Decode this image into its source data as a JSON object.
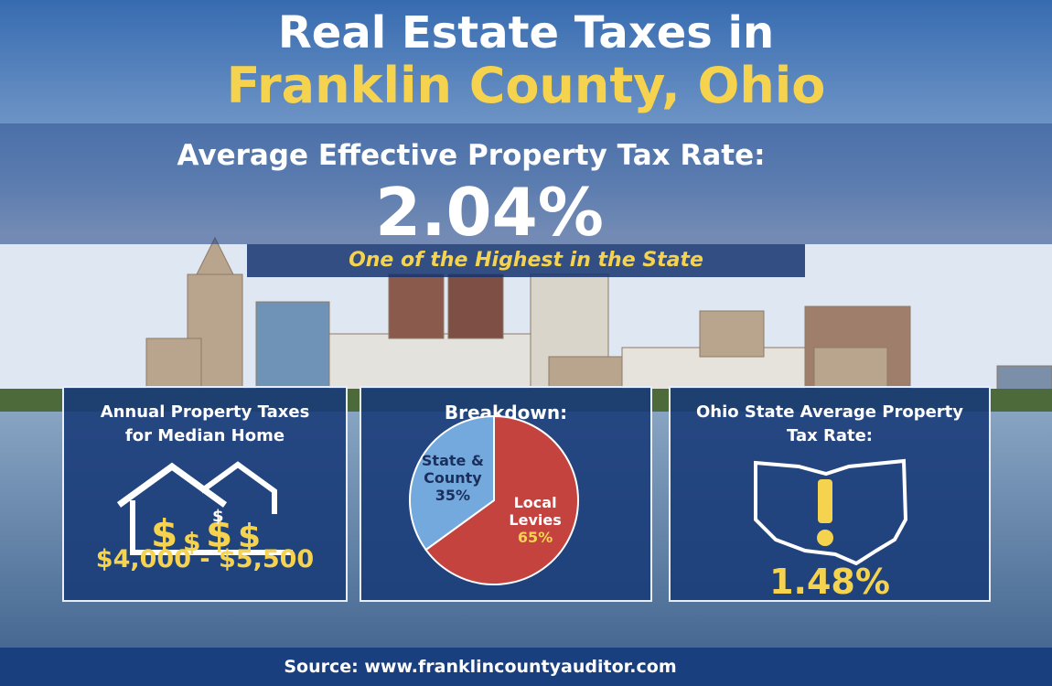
{
  "header": {
    "title_line1": "Real Estate Taxes in",
    "title_line2": "Franklin County, Ohio"
  },
  "headline": {
    "label": "Average Effective Property Tax Rate:",
    "value": "2.04%",
    "note": "One of the Highest in the State"
  },
  "cards": [
    {
      "title": "Annual Property Taxes for Median Home",
      "value": "$4,000 - $5,500"
    },
    {
      "title": "Breakdown:"
    },
    {
      "title": "Ohio State Average Property Tax Rate:",
      "value": "1.48%"
    }
  ],
  "chart_data": {
    "type": "pie",
    "categories": [
      "Local Levies",
      "State & County"
    ],
    "values": [
      65,
      35
    ],
    "value_labels": [
      "65%",
      "35%"
    ],
    "colors": [
      "#c4433f",
      "#74a9de"
    ]
  },
  "footer": {
    "source": "Source: www.franklincountyauditor.com"
  }
}
